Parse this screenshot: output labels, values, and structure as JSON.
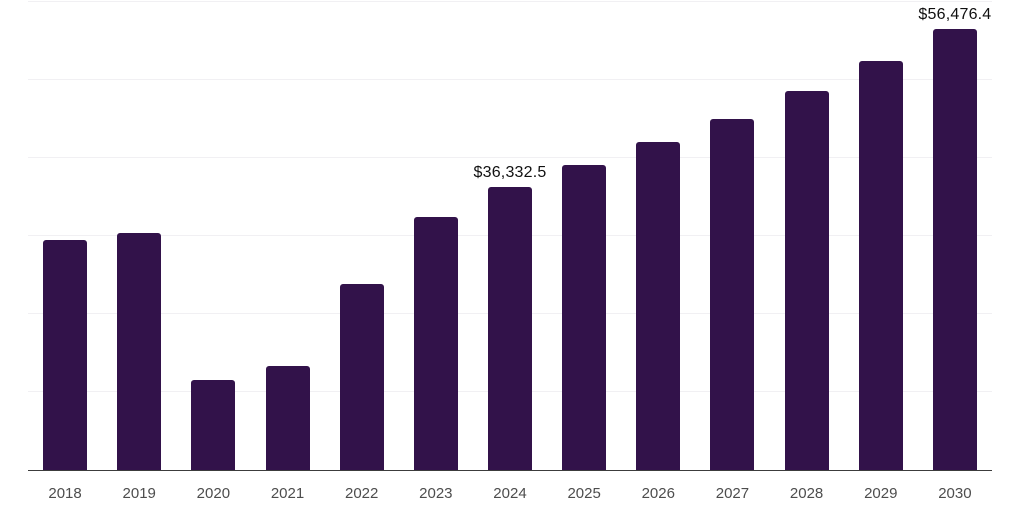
{
  "chart_data": {
    "type": "bar",
    "title": "",
    "xlabel": "",
    "ylabel": "",
    "categories": [
      "2018",
      "2019",
      "2020",
      "2021",
      "2022",
      "2023",
      "2024",
      "2025",
      "2026",
      "2027",
      "2028",
      "2029",
      "2030"
    ],
    "values": [
      29500,
      30400,
      11600,
      13300,
      23800,
      32500,
      36332.5,
      39100,
      42000,
      45000,
      48600,
      52400,
      56476.4
    ],
    "annotations": [
      {
        "category": "2024",
        "text": "$36,332.5"
      },
      {
        "category": "2030",
        "text": "$56,476.4"
      }
    ],
    "ylim": [
      0,
      60000
    ],
    "gridline_step": 10000,
    "grid": true,
    "legend": false,
    "y_axis_labels_visible": false,
    "bar_color": "#32124a",
    "gridline_color": "#f1f0f3",
    "axis_line_color": "#3c3c3c",
    "tick_label_color": "#4d4d4d",
    "annotation_color": "#101010",
    "background": "#ffffff"
  }
}
